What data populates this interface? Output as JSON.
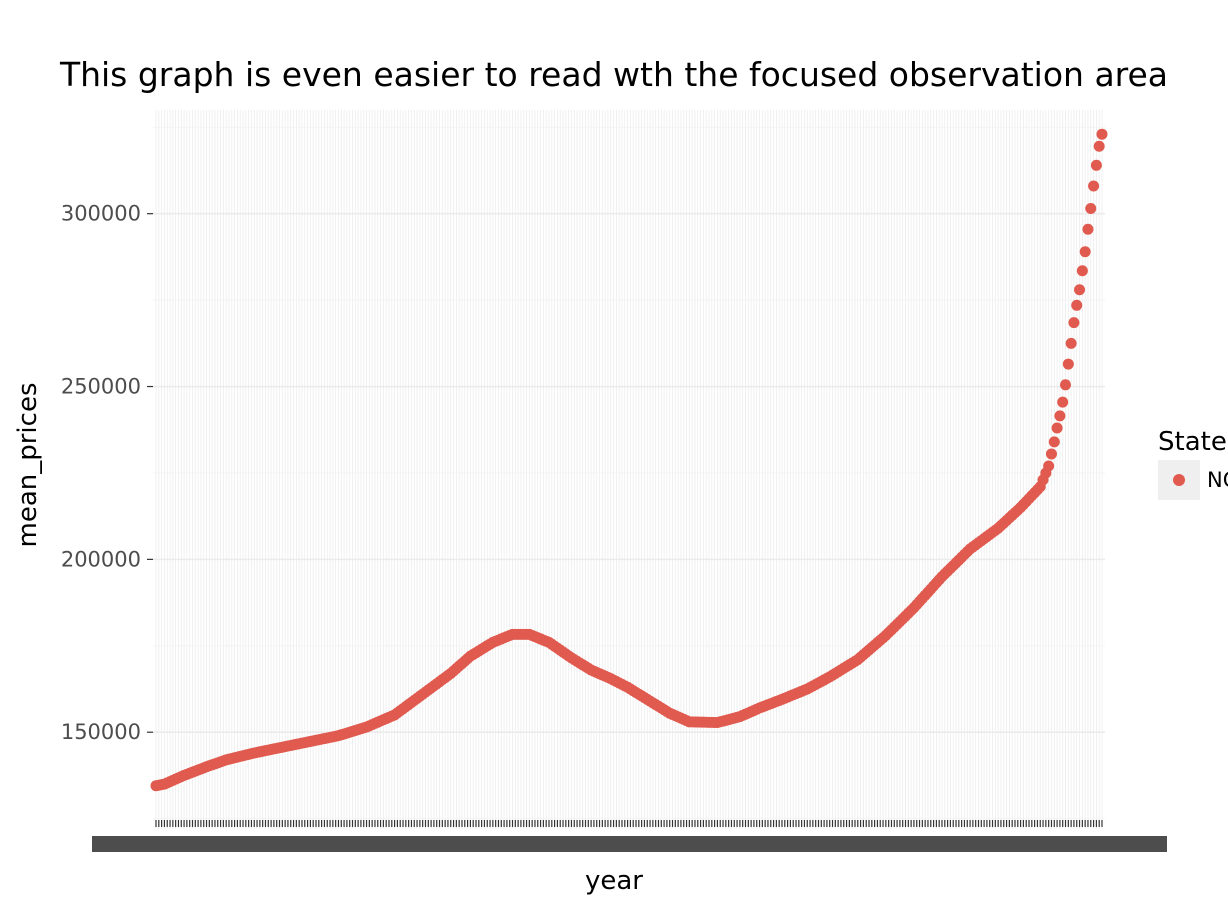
{
  "chart_data": {
    "type": "scatter",
    "title": "This graph is even easier to read wth the focused observation area",
    "xlabel": "year",
    "ylabel": "mean_prices",
    "y_ticks": [
      "150000",
      "200000",
      "250000",
      "300000"
    ],
    "ylim": [
      122000,
      330000
    ],
    "grid": true,
    "legend": {
      "title": "State",
      "entries": [
        "NC"
      ],
      "placement": "right"
    },
    "x_tick_labels": "dense overlapping monthly date labels (illegible)",
    "x_range_desc": "~280 monthly observations",
    "series": [
      {
        "name": "NC",
        "color": "#e05a4f",
        "anchors": [
          [
            0,
            134500
          ],
          [
            3,
            135000
          ],
          [
            10,
            137500
          ],
          [
            18,
            140000
          ],
          [
            25,
            142000
          ],
          [
            35,
            144000
          ],
          [
            50,
            146500
          ],
          [
            65,
            149000
          ],
          [
            75,
            151500
          ],
          [
            85,
            155000
          ],
          [
            95,
            161000
          ],
          [
            105,
            167000
          ],
          [
            112,
            172000
          ],
          [
            120,
            176000
          ],
          [
            127,
            178300
          ],
          [
            133,
            178300
          ],
          [
            140,
            176000
          ],
          [
            148,
            171500
          ],
          [
            155,
            168000
          ],
          [
            162,
            165500
          ],
          [
            168,
            163000
          ],
          [
            175,
            159500
          ],
          [
            183,
            155500
          ],
          [
            190,
            153000
          ],
          [
            200,
            152800
          ],
          [
            208,
            154500
          ],
          [
            215,
            157000
          ],
          [
            223,
            159500
          ],
          [
            232,
            162500
          ],
          [
            240,
            166000
          ],
          [
            250,
            171000
          ],
          [
            260,
            178000
          ],
          [
            270,
            186000
          ],
          [
            280,
            195000
          ],
          [
            290,
            203000
          ],
          [
            300,
            209000
          ],
          [
            308,
            215000
          ],
          [
            315,
            221000
          ],
          [
            316,
            223000
          ],
          [
            317,
            225000
          ],
          [
            318,
            227000
          ],
          [
            320,
            234000
          ],
          [
            321,
            238000
          ],
          [
            322,
            241500
          ],
          [
            323,
            245500
          ],
          [
            324,
            250500
          ],
          [
            325,
            256500
          ],
          [
            326,
            262500
          ],
          [
            327,
            268500
          ],
          [
            328,
            273500
          ],
          [
            329,
            278000
          ],
          [
            330,
            283500
          ],
          [
            331,
            289000
          ],
          [
            332,
            295500
          ],
          [
            333,
            301500
          ],
          [
            334,
            308000
          ],
          [
            335,
            314000
          ],
          [
            336,
            319500
          ],
          [
            337,
            323000
          ]
        ]
      }
    ]
  }
}
